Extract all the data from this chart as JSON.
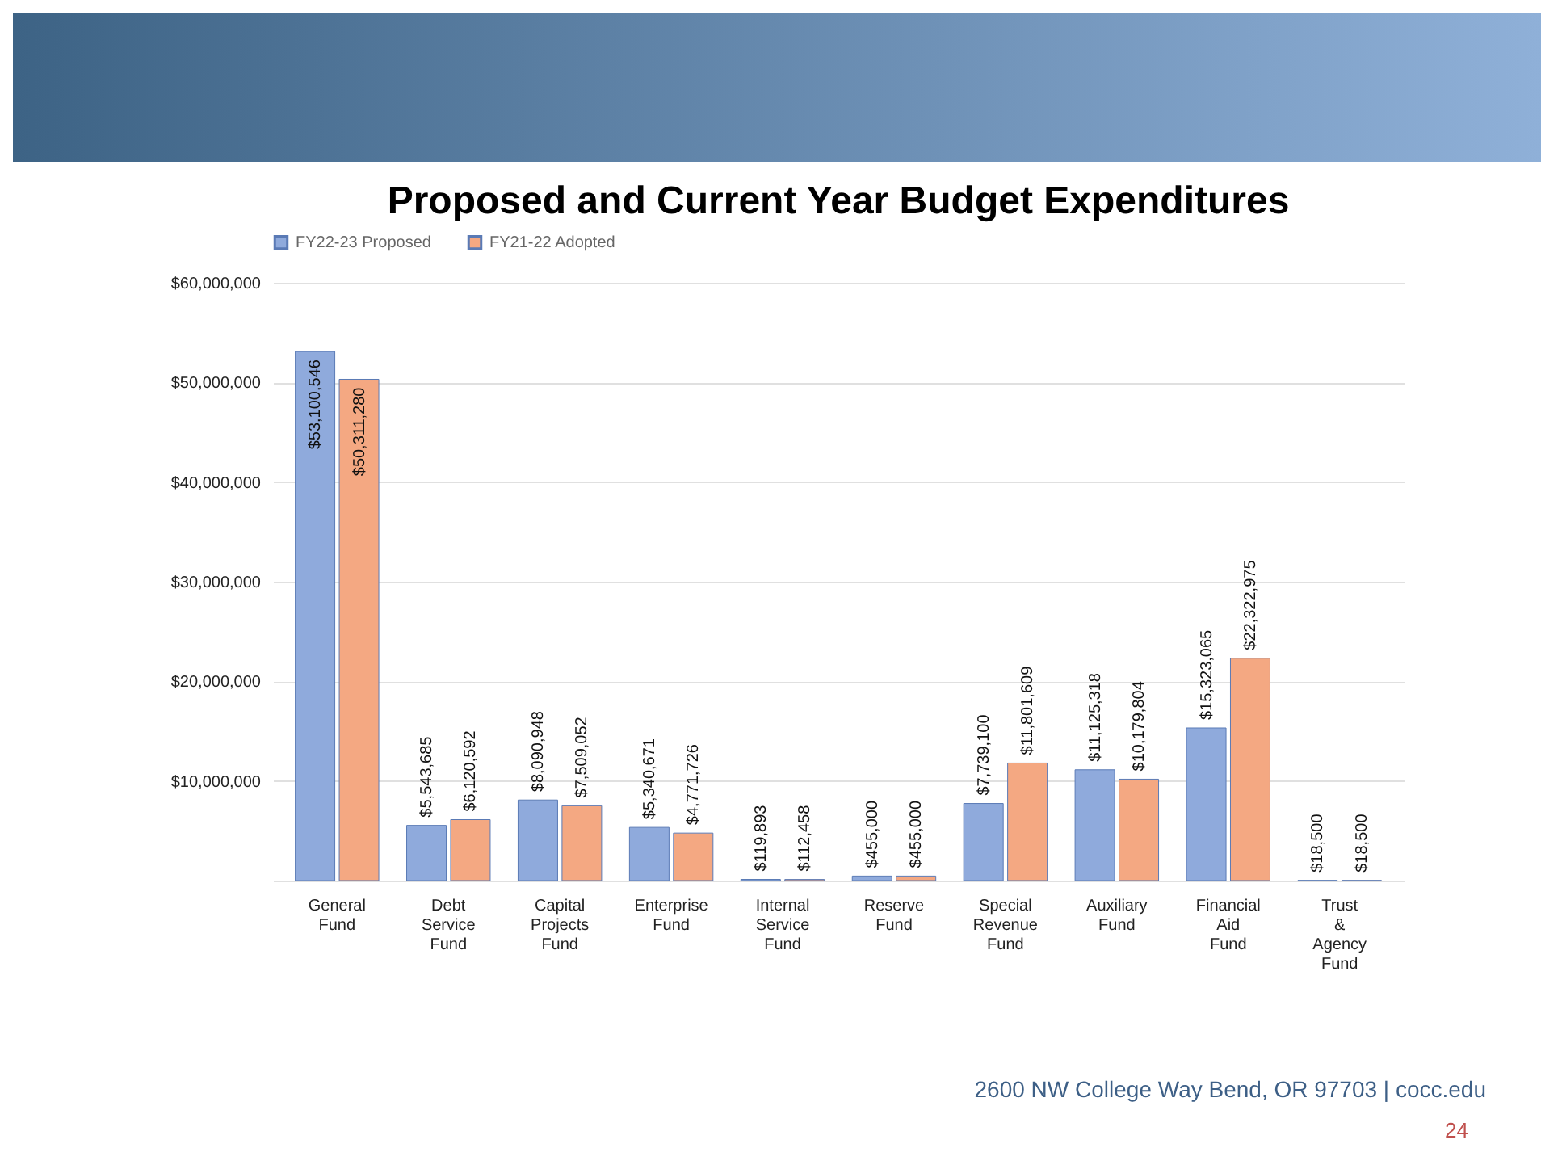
{
  "chart_data": {
    "type": "bar",
    "title": "Proposed and Current Year Budget Expenditures",
    "categories": [
      "General Fund",
      "Debt Service Fund",
      "Capital Projects Fund",
      "Enterprise Fund",
      "Internal Service Fund",
      "Reserve Fund",
      "Special Revenue Fund",
      "Auxiliary Fund",
      "Financial Aid Fund",
      "Trust & Agency Fund"
    ],
    "series": [
      {
        "name": "FY22-23 Proposed",
        "color": "#8faadc",
        "values": [
          53100546,
          5543685,
          8090948,
          5340671,
          119893,
          455000,
          7739100,
          11125318,
          15323065,
          18500
        ],
        "value_labels": [
          "$53,100,546",
          "$5,543,685",
          "$8,090,948",
          "$5,340,671",
          "$119,893",
          "$455,000",
          "$7,739,100",
          "$11,125,318",
          "$15,323,065",
          "$18,500"
        ]
      },
      {
        "name": "FY21-22 Adopted",
        "color": "#f4a882",
        "values": [
          50311280,
          6120592,
          7509052,
          4771726,
          112458,
          455000,
          11801609,
          10179804,
          22322975,
          18500
        ],
        "value_labels": [
          "$50,311,280",
          "$6,120,592",
          "$7,509,052",
          "$4,771,726",
          "$112,458",
          "$455,000",
          "$11,801,609",
          "$10,179,804",
          "$22,322,975",
          "$18,500"
        ]
      }
    ],
    "ylim": [
      0,
      60000000
    ],
    "yticks": [
      {
        "value": 0,
        "label": null
      },
      {
        "value": 10000000,
        "label": "$10,000,000"
      },
      {
        "value": 20000000,
        "label": "$20,000,000"
      },
      {
        "value": 30000000,
        "label": "$30,000,000"
      },
      {
        "value": 40000000,
        "label": "$40,000,000"
      },
      {
        "value": 50000000,
        "label": "$50,000,000"
      },
      {
        "value": 60000000,
        "label": "$60,000,000"
      }
    ],
    "grid": "y",
    "legend": "top",
    "annotations": [
      "2600 NW College Way  Bend, OR 97703  |  cocc.edu",
      "24"
    ]
  }
}
